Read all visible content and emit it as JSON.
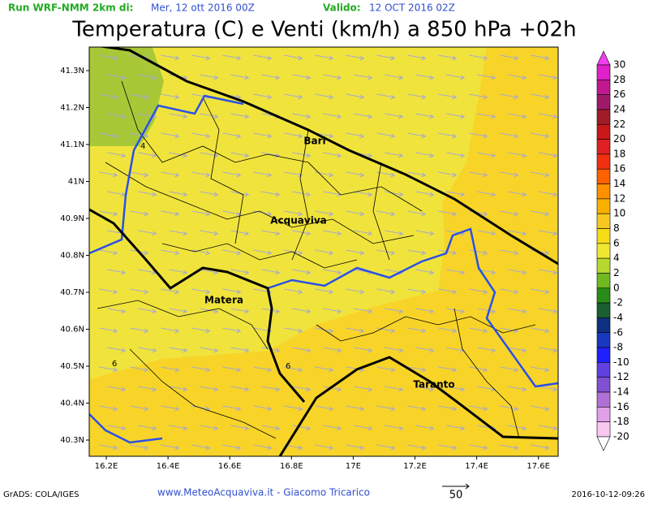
{
  "header": {
    "run_label": "Run WRF-NMM 2km di:",
    "run_date": "Mer, 12 ott 2016 00Z",
    "valid_label": "Valido:",
    "valid_date": "12 OCT 2016 02Z"
  },
  "title": "Temperatura (C) e Venti (km/h) a 850 hPa +02h",
  "map": {
    "lat_labels": [
      "41.3N",
      "41.2N",
      "41.1N",
      "41N",
      "40.9N",
      "40.8N",
      "40.7N",
      "40.6N",
      "40.5N",
      "40.4N",
      "40.3N"
    ],
    "lon_labels": [
      "16.2E",
      "16.4E",
      "16.6E",
      "16.8E",
      "17E",
      "17.2E",
      "17.4E",
      "17.6E"
    ],
    "cities": [
      "Bari",
      "Acquaviva",
      "Matera",
      "Taranto"
    ],
    "contour_labels": [
      "4",
      "6",
      "6"
    ]
  },
  "colorbar": {
    "labels": [
      30,
      28,
      26,
      24,
      22,
      20,
      18,
      16,
      14,
      12,
      10,
      8,
      6,
      4,
      2,
      0,
      -2,
      -4,
      -6,
      -8,
      -10,
      -12,
      -14,
      -16,
      -18,
      -20
    ],
    "colors": [
      "#f040f0",
      "#e020c8",
      "#c01890",
      "#a01a6a",
      "#a01c28",
      "#c81818",
      "#e02020",
      "#f03010",
      "#ff6000",
      "#ff9000",
      "#f8b000",
      "#f8c820",
      "#f8dc18",
      "#f0e830",
      "#b8d830",
      "#70b820",
      "#288c18",
      "#186030",
      "#103080",
      "#1838c0",
      "#2020ff",
      "#6040e0",
      "#8050d0",
      "#b070d8",
      "#e0a0e8",
      "#f8c8f0",
      "#ffffff"
    ]
  },
  "footer": {
    "software": "GrADS: COLA/IGES",
    "credit": "www.MeteoAcquaviva.it - Giacomo Tricarico",
    "arrow_scale": "50",
    "timestamp": "2016-10-12-09:26"
  }
}
